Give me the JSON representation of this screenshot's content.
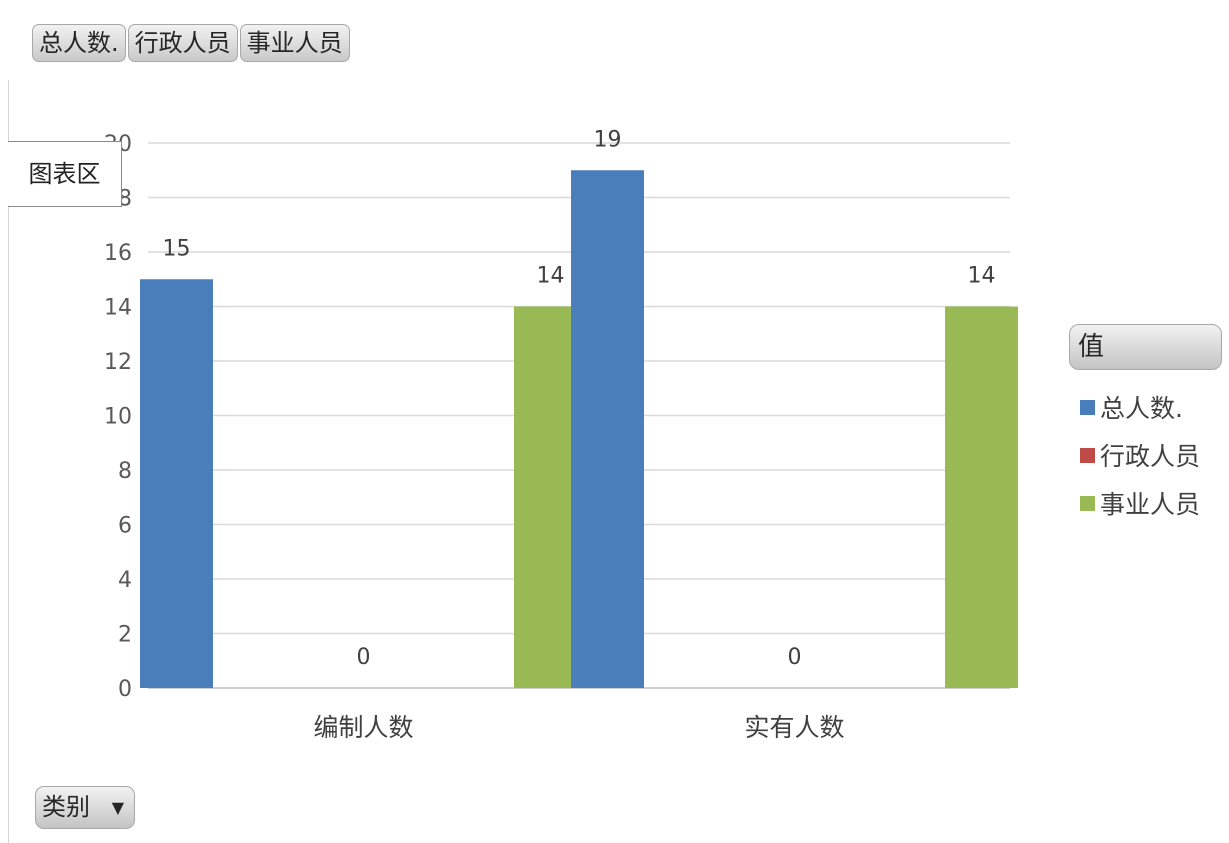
{
  "field_buttons": [
    "总人数.",
    "行政人员",
    "事业人员"
  ],
  "chart_area_label": "图表区",
  "legend_button_label": "值",
  "category_button_label": "类别",
  "colors": {
    "总人数.": "#4a7ebb",
    "行政人员": "#be4b48",
    "事业人员": "#98b954"
  },
  "chart_data": {
    "type": "bar",
    "categories": [
      "编制人数",
      "实有人数"
    ],
    "series": [
      {
        "name": "总人数.",
        "values": [
          15,
          19
        ]
      },
      {
        "name": "行政人员",
        "values": [
          0,
          0
        ]
      },
      {
        "name": "事业人员",
        "values": [
          14,
          14
        ]
      }
    ],
    "ylim": [
      0,
      20
    ],
    "yticks": [
      0,
      2,
      4,
      6,
      8,
      10,
      12,
      14,
      16,
      18,
      20
    ],
    "grid": true,
    "data_labels": true,
    "legend_position": "right",
    "title": "",
    "xlabel": "",
    "ylabel": ""
  }
}
